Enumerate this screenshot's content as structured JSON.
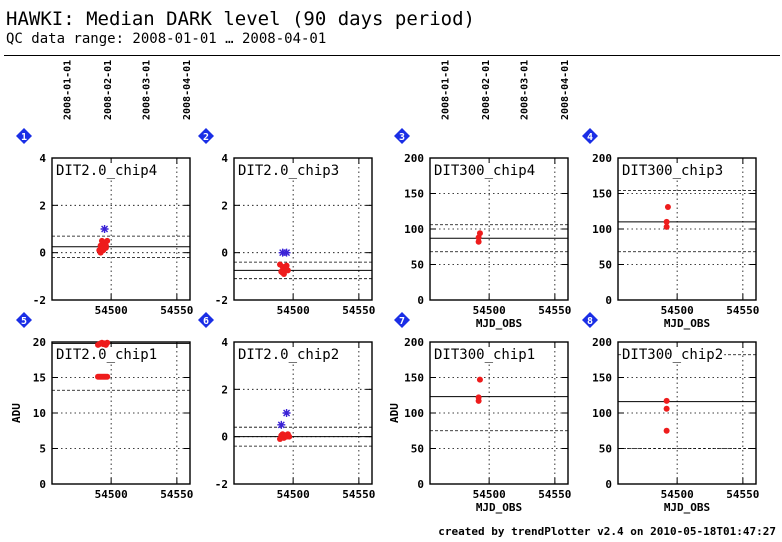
{
  "header": {
    "title": "HAWKI: Median DARK level (90 days period)",
    "subtitle": "QC data range: 2008-01-01 … 2008-04-01"
  },
  "footer": "created by trendPlotter v2.4 on 2010-05-18T01:47:27",
  "date_ticks": [
    "2008-01-01",
    "2008-02-01",
    "2008-03-01",
    "2008-04-01"
  ],
  "x_ticks": [
    "54500",
    "54550"
  ],
  "colors": {
    "points": "#ee1c1c",
    "stars": "#3a22d6",
    "badge": "#1a2ee6"
  },
  "chart_data": [
    {
      "type": "scatter",
      "index": "1",
      "title": "DIT2.0_chip4",
      "xlabel": "",
      "ylabel": "",
      "xlim": [
        54455,
        54560
      ],
      "ylim": [
        -2,
        4
      ],
      "y_ticks": [
        "-2",
        "0",
        "2",
        "4"
      ],
      "reference": 0.25,
      "band": [
        -0.2,
        0.7
      ],
      "points": [
        [
          54491,
          0.1
        ],
        [
          54492,
          0.3
        ],
        [
          54493,
          0.5
        ],
        [
          54494,
          0.2
        ],
        [
          54495,
          0.4
        ],
        [
          54496,
          0.3
        ],
        [
          54497,
          0.5
        ],
        [
          54492,
          0.0
        ],
        [
          54494,
          0.1
        ],
        [
          54496,
          0.2
        ]
      ],
      "stars": [
        [
          54495,
          1.0
        ]
      ]
    },
    {
      "type": "scatter",
      "index": "2",
      "title": "DIT2.0_chip3",
      "xlabel": "",
      "ylabel": "",
      "xlim": [
        54455,
        54560
      ],
      "ylim": [
        -2,
        4
      ],
      "y_ticks": [
        "-2",
        "0",
        "2",
        "4"
      ],
      "reference": -0.75,
      "band": [
        -1.1,
        -0.4
      ],
      "points": [
        [
          54490,
          -0.5
        ],
        [
          54491,
          -0.8
        ],
        [
          54492,
          -0.6
        ],
        [
          54493,
          -0.9
        ],
        [
          54494,
          -0.7
        ],
        [
          54495,
          -0.55
        ],
        [
          54496,
          -0.75
        ],
        [
          54492,
          -0.85
        ]
      ],
      "stars": [
        [
          54492,
          0.0
        ],
        [
          54495,
          0.0
        ]
      ]
    },
    {
      "type": "scatter",
      "index": "3",
      "title": "DIT300_chip4",
      "xlabel": "MJD_OBS",
      "ylabel": "",
      "xlim": [
        54455,
        54560
      ],
      "ylim": [
        0,
        200
      ],
      "y_ticks": [
        "0",
        "50",
        "100",
        "150",
        "200"
      ],
      "reference": 87,
      "band": [
        68,
        106
      ],
      "points": [
        [
          54492,
          82
        ],
        [
          54492,
          88
        ],
        [
          54493,
          94
        ]
      ],
      "stars": []
    },
    {
      "type": "scatter",
      "index": "4",
      "title": "DIT300_chip3",
      "xlabel": "MJD_OBS",
      "ylabel": "",
      "xlim": [
        54455,
        54560
      ],
      "ylim": [
        0,
        200
      ],
      "y_ticks": [
        "0",
        "50",
        "100",
        "150",
        "200"
      ],
      "reference": 110,
      "band": [
        68,
        154
      ],
      "points": [
        [
          54492,
          103
        ],
        [
          54492,
          110
        ],
        [
          54493,
          131
        ]
      ],
      "stars": []
    },
    {
      "type": "scatter",
      "index": "5",
      "title": "DIT2.0_chip1",
      "xlabel": "",
      "ylabel": "ADU",
      "xlim": [
        54455,
        54560
      ],
      "ylim": [
        0,
        20
      ],
      "y_ticks": [
        "0",
        "5",
        "10",
        "15",
        "20"
      ],
      "reference": 19.8,
      "band": [
        13.2,
        20
      ],
      "points": [
        [
          54490,
          19.6
        ],
        [
          54491,
          19.7
        ],
        [
          54492,
          19.8
        ],
        [
          54493,
          19.9
        ],
        [
          54494,
          19.7
        ],
        [
          54495,
          19.8
        ],
        [
          54496,
          19.6
        ],
        [
          54497,
          19.9
        ],
        [
          54490,
          15.1
        ],
        [
          54491,
          15.1
        ],
        [
          54492,
          15.1
        ],
        [
          54493,
          15.1
        ],
        [
          54494,
          15.1
        ],
        [
          54495,
          15.1
        ],
        [
          54496,
          15.1
        ],
        [
          54497,
          15.1
        ]
      ],
      "stars": []
    },
    {
      "type": "scatter",
      "index": "6",
      "title": "DIT2.0_chip2",
      "xlabel": "",
      "ylabel": "",
      "xlim": [
        54455,
        54560
      ],
      "ylim": [
        -2,
        4
      ],
      "y_ticks": [
        "-2",
        "0",
        "2",
        "4"
      ],
      "reference": 0.0,
      "band": [
        -0.4,
        0.4
      ],
      "points": [
        [
          54490,
          -0.1
        ],
        [
          54491,
          0.05
        ],
        [
          54492,
          0.1
        ],
        [
          54493,
          -0.05
        ],
        [
          54494,
          0.05
        ],
        [
          54495,
          0.0
        ],
        [
          54496,
          0.1
        ],
        [
          54497,
          0.0
        ]
      ],
      "stars": [
        [
          54491,
          0.5
        ],
        [
          54495,
          1.0
        ]
      ]
    },
    {
      "type": "scatter",
      "index": "7",
      "title": "DIT300_chip1",
      "xlabel": "MJD_OBS",
      "ylabel": "ADU",
      "xlim": [
        54455,
        54560
      ],
      "ylim": [
        0,
        200
      ],
      "y_ticks": [
        "0",
        "50",
        "100",
        "150",
        "200"
      ],
      "reference": 123,
      "band": [
        75,
        200
      ],
      "points": [
        [
          54492,
          117
        ],
        [
          54492,
          122
        ],
        [
          54493,
          147
        ]
      ],
      "stars": []
    },
    {
      "type": "scatter",
      "index": "8",
      "title": "DIT300_chip2",
      "xlabel": "MJD_OBS",
      "ylabel": "",
      "xlim": [
        54455,
        54560
      ],
      "ylim": [
        0,
        200
      ],
      "y_ticks": [
        "0",
        "50",
        "100",
        "150",
        "200"
      ],
      "reference": 116,
      "band": [
        50,
        182
      ],
      "points": [
        [
          54492,
          75
        ],
        [
          54492,
          106
        ],
        [
          54492,
          117
        ]
      ],
      "stars": []
    }
  ]
}
